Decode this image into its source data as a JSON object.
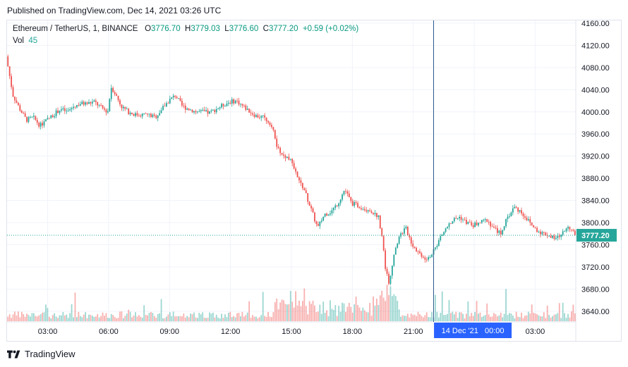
{
  "header": {
    "published": "Published on TradingView.com, Dec 14, 2021 03:26 UTC"
  },
  "legend": {
    "symbol": "Ethereum / TetherUS, 1, BINANCE",
    "open_label": "O",
    "open": "3776.70",
    "high_label": "H",
    "high": "3779.03",
    "low_label": "L",
    "low": "3776.60",
    "close_label": "C",
    "close": "3777.20",
    "change": "+0.59 (+0.02%)",
    "vol_label": "Vol",
    "vol": "45"
  },
  "crosshair_label": "14 Dec '21   00:00",
  "footer": {
    "brand": "TradingView"
  },
  "colors": {
    "up": "#26a69a",
    "down": "#ef5350",
    "accent": "#2962ff",
    "last_price": "#26a69a"
  },
  "chart_data": {
    "type": "candlestick",
    "title": "Ethereum / TetherUS, 1, BINANCE",
    "x_ticks": [
      "03:00",
      "06:00",
      "09:00",
      "12:00",
      "15:00",
      "18:00",
      "21:00",
      "14 Dec '21",
      "03:00"
    ],
    "y_ticks": [
      3640,
      3680,
      3720,
      3760,
      3800,
      3840,
      3880,
      3920,
      3960,
      4000,
      4040,
      4080,
      4120,
      4160
    ],
    "y_tick_labels": [
      "3640.00",
      "3680.00",
      "3720.00",
      "3760.00",
      "3800.00",
      "3840.00",
      "3880.00",
      "3920.00",
      "3960.00",
      "4000.00",
      "4040.00",
      "4080.00",
      "4120.00",
      "4160.00"
    ],
    "ylim": [
      3622,
      4165
    ],
    "xlim": [
      0,
      1680
    ],
    "last_price": 3777.2,
    "last_price_label": "3777.20",
    "crosshair_x": 1260,
    "x_tick_positions": [
      120,
      300,
      480,
      660,
      840,
      1020,
      1200,
      1380,
      1560
    ],
    "price_path": [
      [
        0,
        4100
      ],
      [
        20,
        4030
      ],
      [
        40,
        4005
      ],
      [
        60,
        3985
      ],
      [
        80,
        3990
      ],
      [
        100,
        3975
      ],
      [
        120,
        3985
      ],
      [
        140,
        3995
      ],
      [
        160,
        4005
      ],
      [
        180,
        4000
      ],
      [
        200,
        4010
      ],
      [
        220,
        4015
      ],
      [
        240,
        4015
      ],
      [
        260,
        4018
      ],
      [
        280,
        4008
      ],
      [
        300,
        4000
      ],
      [
        310,
        4045
      ],
      [
        320,
        4035
      ],
      [
        340,
        4010
      ],
      [
        360,
        4000
      ],
      [
        380,
        3995
      ],
      [
        400,
        3995
      ],
      [
        420,
        3995
      ],
      [
        440,
        3990
      ],
      [
        460,
        4005
      ],
      [
        480,
        4020
      ],
      [
        500,
        4030
      ],
      [
        520,
        4010
      ],
      [
        540,
        4005
      ],
      [
        560,
        4000
      ],
      [
        580,
        4000
      ],
      [
        600,
        3998
      ],
      [
        620,
        4005
      ],
      [
        640,
        4012
      ],
      [
        660,
        4018
      ],
      [
        680,
        4020
      ],
      [
        700,
        4010
      ],
      [
        720,
        4000
      ],
      [
        740,
        3992
      ],
      [
        760,
        3990
      ],
      [
        780,
        3980
      ],
      [
        790,
        3962
      ],
      [
        800,
        3935
      ],
      [
        820,
        3920
      ],
      [
        840,
        3915
      ],
      [
        860,
        3880
      ],
      [
        880,
        3860
      ],
      [
        900,
        3825
      ],
      [
        920,
        3790
      ],
      [
        940,
        3815
      ],
      [
        960,
        3820
      ],
      [
        980,
        3835
      ],
      [
        1000,
        3860
      ],
      [
        1020,
        3835
      ],
      [
        1040,
        3830
      ],
      [
        1060,
        3825
      ],
      [
        1080,
        3820
      ],
      [
        1100,
        3810
      ],
      [
        1110,
        3775
      ],
      [
        1120,
        3720
      ],
      [
        1130,
        3690
      ],
      [
        1140,
        3725
      ],
      [
        1160,
        3775
      ],
      [
        1180,
        3790
      ],
      [
        1200,
        3760
      ],
      [
        1220,
        3745
      ],
      [
        1240,
        3735
      ],
      [
        1260,
        3745
      ],
      [
        1280,
        3770
      ],
      [
        1300,
        3790
      ],
      [
        1320,
        3805
      ],
      [
        1340,
        3810
      ],
      [
        1360,
        3800
      ],
      [
        1380,
        3795
      ],
      [
        1400,
        3800
      ],
      [
        1420,
        3805
      ],
      [
        1440,
        3790
      ],
      [
        1460,
        3780
      ],
      [
        1480,
        3808
      ],
      [
        1500,
        3828
      ],
      [
        1520,
        3820
      ],
      [
        1540,
        3805
      ],
      [
        1560,
        3790
      ],
      [
        1580,
        3782
      ],
      [
        1600,
        3778
      ],
      [
        1620,
        3770
      ],
      [
        1640,
        3778
      ],
      [
        1660,
        3795
      ],
      [
        1680,
        3777
      ]
    ]
  }
}
